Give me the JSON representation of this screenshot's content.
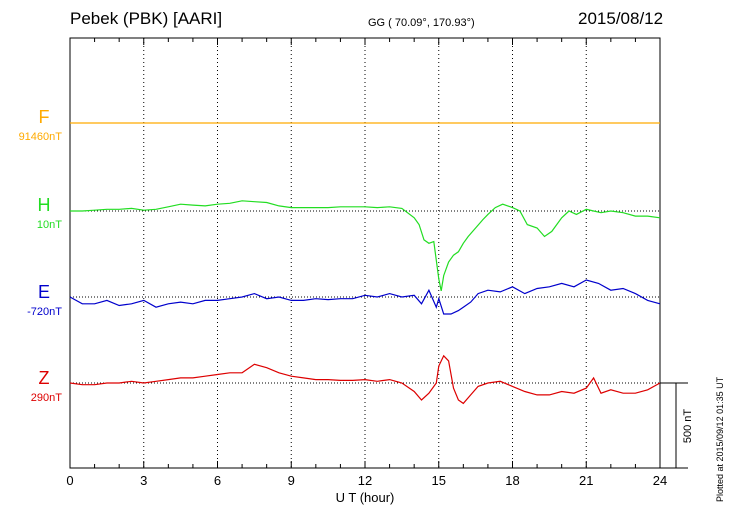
{
  "header": {
    "station": "Pebek (PBK)  [AARI]",
    "coords": "GG ( 70.09°, 170.93°)",
    "date": "2015/08/12"
  },
  "plotted_note": "Plotted at 2015/09/12 01:35 UT",
  "colors": {
    "F": "#ffaa00",
    "H": "#22dd22",
    "E": "#0000cc",
    "Z": "#dd0000"
  },
  "chart_data": {
    "type": "line",
    "xlabel": "U T (hour)",
    "x_ticks": [
      "0",
      "3",
      "6",
      "9",
      "12",
      "15",
      "18",
      "21",
      "24"
    ],
    "xlim": [
      0,
      24
    ],
    "scale_bar_label": "500 nT",
    "scale_bar_nT": 500,
    "channels": [
      {
        "name": "F",
        "baseline": "91460nT",
        "x": [
          0,
          24
        ],
        "y": [
          0,
          0
        ]
      },
      {
        "name": "H",
        "baseline": "10nT",
        "x": [
          0,
          0.5,
          1,
          1.5,
          2,
          2.5,
          3,
          3.5,
          4,
          4.5,
          5,
          5.5,
          6,
          6.5,
          7,
          7.5,
          8,
          8.5,
          9,
          9.5,
          10,
          10.5,
          11,
          11.5,
          12,
          12.5,
          13,
          13.5,
          14,
          14.2,
          14.4,
          14.6,
          14.8,
          15,
          15.1,
          15.2,
          15.4,
          15.6,
          15.8,
          16,
          16.2,
          16.5,
          16.8,
          17,
          17.3,
          17.6,
          18,
          18.3,
          18.6,
          19,
          19.3,
          19.6,
          20,
          20.3,
          20.6,
          21,
          21.3,
          21.6,
          22,
          22.5,
          23,
          23.5,
          24
        ],
        "y": [
          0,
          0,
          5,
          10,
          10,
          15,
          5,
          10,
          25,
          40,
          35,
          30,
          40,
          45,
          60,
          55,
          50,
          30,
          20,
          20,
          20,
          20,
          25,
          25,
          25,
          20,
          25,
          15,
          -40,
          -80,
          -170,
          -190,
          -180,
          -400,
          -470,
          -380,
          -300,
          -260,
          -240,
          -190,
          -150,
          -100,
          -50,
          -20,
          20,
          40,
          20,
          0,
          -80,
          -100,
          -150,
          -120,
          -40,
          0,
          -20,
          10,
          0,
          -10,
          0,
          -10,
          -30,
          -30,
          -40
        ]
      },
      {
        "name": "E",
        "baseline": "-720nT",
        "x": [
          0,
          0.5,
          1,
          1.5,
          2,
          2.5,
          3,
          3.5,
          4,
          4.5,
          5,
          5.5,
          6,
          6.5,
          7,
          7.5,
          8,
          8.5,
          9,
          9.5,
          10,
          10.5,
          11,
          11.5,
          12,
          12.5,
          13,
          13.5,
          14,
          14.3,
          14.6,
          14.9,
          15,
          15.2,
          15.5,
          15.8,
          16,
          16.3,
          16.6,
          17,
          17.5,
          18,
          18.5,
          19,
          19.5,
          20,
          20.5,
          21,
          21.5,
          22,
          22.5,
          23,
          23.5,
          24
        ],
        "y": [
          0,
          -40,
          -40,
          -20,
          -50,
          -40,
          -20,
          -60,
          -40,
          -30,
          -40,
          -20,
          -20,
          -10,
          0,
          20,
          -10,
          0,
          -20,
          -20,
          -10,
          -15,
          -10,
          -10,
          10,
          0,
          20,
          0,
          10,
          -40,
          40,
          -60,
          -10,
          -100,
          -100,
          -80,
          -60,
          -30,
          20,
          40,
          30,
          60,
          20,
          50,
          60,
          80,
          60,
          100,
          80,
          40,
          50,
          20,
          -20,
          -40
        ]
      },
      {
        "name": "Z",
        "baseline": "290nT",
        "x": [
          0,
          0.5,
          1,
          1.5,
          2,
          2.5,
          3,
          3.5,
          4,
          4.5,
          5,
          5.5,
          6,
          6.5,
          7,
          7.5,
          8,
          8.5,
          9,
          9.5,
          10,
          10.5,
          11,
          11.5,
          12,
          12.5,
          13,
          13.5,
          14,
          14.3,
          14.6,
          14.9,
          15,
          15.2,
          15.4,
          15.6,
          15.8,
          16,
          16.3,
          16.6,
          17,
          17.5,
          18,
          18.5,
          19,
          19.5,
          20,
          20.5,
          21,
          21.3,
          21.6,
          22,
          22.5,
          23,
          23.5,
          24
        ],
        "y": [
          0,
          -10,
          -10,
          0,
          0,
          10,
          0,
          10,
          20,
          30,
          30,
          40,
          50,
          60,
          60,
          110,
          90,
          60,
          40,
          30,
          20,
          20,
          15,
          15,
          20,
          10,
          20,
          0,
          -50,
          -100,
          -60,
          0,
          100,
          160,
          130,
          -30,
          -100,
          -120,
          -70,
          -20,
          0,
          10,
          -20,
          -50,
          -70,
          -70,
          -50,
          -60,
          -30,
          30,
          -60,
          -40,
          -60,
          -60,
          -40,
          0
        ]
      }
    ]
  }
}
